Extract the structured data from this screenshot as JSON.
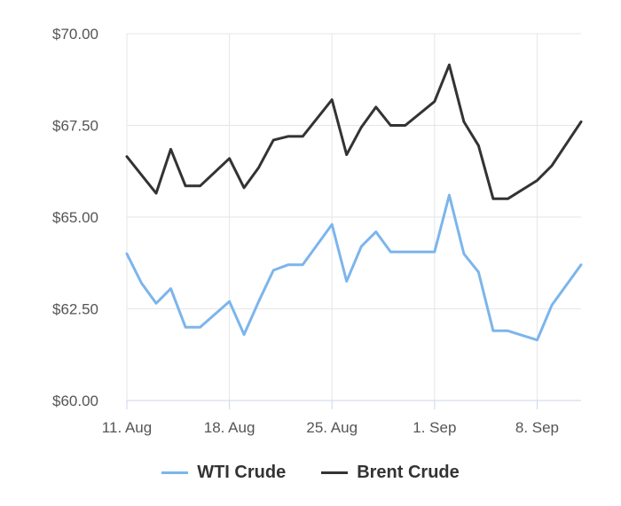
{
  "chart_data": {
    "type": "line",
    "title": "",
    "xlabel": "",
    "ylabel": "",
    "ylim": [
      60,
      70
    ],
    "y_ticks": [
      "$60.00",
      "$62.50",
      "$65.00",
      "$67.50",
      "$70.00"
    ],
    "y_tick_values": [
      60,
      62.5,
      65,
      67.5,
      70
    ],
    "x_range": [
      "2025-08-11",
      "2025-09-11"
    ],
    "x_ticks": [
      {
        "date": "2025-08-11",
        "label": "11. Aug"
      },
      {
        "date": "2025-08-18",
        "label": "18. Aug"
      },
      {
        "date": "2025-08-25",
        "label": "25. Aug"
      },
      {
        "date": "2025-09-01",
        "label": "1. Sep"
      },
      {
        "date": "2025-09-08",
        "label": "8. Sep"
      }
    ],
    "grid": true,
    "legend_position": "bottom-center",
    "series": [
      {
        "name": "WTI Crude",
        "color": "#7cb5ec",
        "points": [
          {
            "x": "2025-08-11",
            "y": 64.0
          },
          {
            "x": "2025-08-12",
            "y": 63.2
          },
          {
            "x": "2025-08-13",
            "y": 62.65
          },
          {
            "x": "2025-08-14",
            "y": 63.05
          },
          {
            "x": "2025-08-15",
            "y": 62.0
          },
          {
            "x": "2025-08-16",
            "y": 62.0
          },
          {
            "x": "2025-08-18",
            "y": 62.7
          },
          {
            "x": "2025-08-19",
            "y": 61.8
          },
          {
            "x": "2025-08-20",
            "y": 62.7
          },
          {
            "x": "2025-08-21",
            "y": 63.55
          },
          {
            "x": "2025-08-22",
            "y": 63.7
          },
          {
            "x": "2025-08-23",
            "y": 63.7
          },
          {
            "x": "2025-08-25",
            "y": 64.8
          },
          {
            "x": "2025-08-26",
            "y": 63.25
          },
          {
            "x": "2025-08-27",
            "y": 64.2
          },
          {
            "x": "2025-08-28",
            "y": 64.6
          },
          {
            "x": "2025-08-29",
            "y": 64.05
          },
          {
            "x": "2025-08-30",
            "y": 64.05
          },
          {
            "x": "2025-09-01",
            "y": 64.05
          },
          {
            "x": "2025-09-02",
            "y": 65.6
          },
          {
            "x": "2025-09-03",
            "y": 64.0
          },
          {
            "x": "2025-09-04",
            "y": 63.5
          },
          {
            "x": "2025-09-05",
            "y": 61.9
          },
          {
            "x": "2025-09-06",
            "y": 61.9
          },
          {
            "x": "2025-09-08",
            "y": 61.65
          },
          {
            "x": "2025-09-09",
            "y": 62.6
          },
          {
            "x": "2025-09-11",
            "y": 63.7
          }
        ]
      },
      {
        "name": "Brent Crude",
        "color": "#333333",
        "points": [
          {
            "x": "2025-08-11",
            "y": 66.65
          },
          {
            "x": "2025-08-12",
            "y": 66.15
          },
          {
            "x": "2025-08-13",
            "y": 65.65
          },
          {
            "x": "2025-08-14",
            "y": 66.85
          },
          {
            "x": "2025-08-15",
            "y": 65.85
          },
          {
            "x": "2025-08-16",
            "y": 65.85
          },
          {
            "x": "2025-08-18",
            "y": 66.6
          },
          {
            "x": "2025-08-19",
            "y": 65.8
          },
          {
            "x": "2025-08-20",
            "y": 66.35
          },
          {
            "x": "2025-08-21",
            "y": 67.1
          },
          {
            "x": "2025-08-22",
            "y": 67.2
          },
          {
            "x": "2025-08-23",
            "y": 67.2
          },
          {
            "x": "2025-08-25",
            "y": 68.2
          },
          {
            "x": "2025-08-26",
            "y": 66.7
          },
          {
            "x": "2025-08-27",
            "y": 67.45
          },
          {
            "x": "2025-08-28",
            "y": 68.0
          },
          {
            "x": "2025-08-29",
            "y": 67.5
          },
          {
            "x": "2025-08-30",
            "y": 67.5
          },
          {
            "x": "2025-09-01",
            "y": 68.15
          },
          {
            "x": "2025-09-02",
            "y": 69.15
          },
          {
            "x": "2025-09-03",
            "y": 67.6
          },
          {
            "x": "2025-09-04",
            "y": 66.95
          },
          {
            "x": "2025-09-05",
            "y": 65.5
          },
          {
            "x": "2025-09-06",
            "y": 65.5
          },
          {
            "x": "2025-09-08",
            "y": 66.0
          },
          {
            "x": "2025-09-09",
            "y": 66.4
          },
          {
            "x": "2025-09-11",
            "y": 67.6
          }
        ]
      }
    ]
  }
}
